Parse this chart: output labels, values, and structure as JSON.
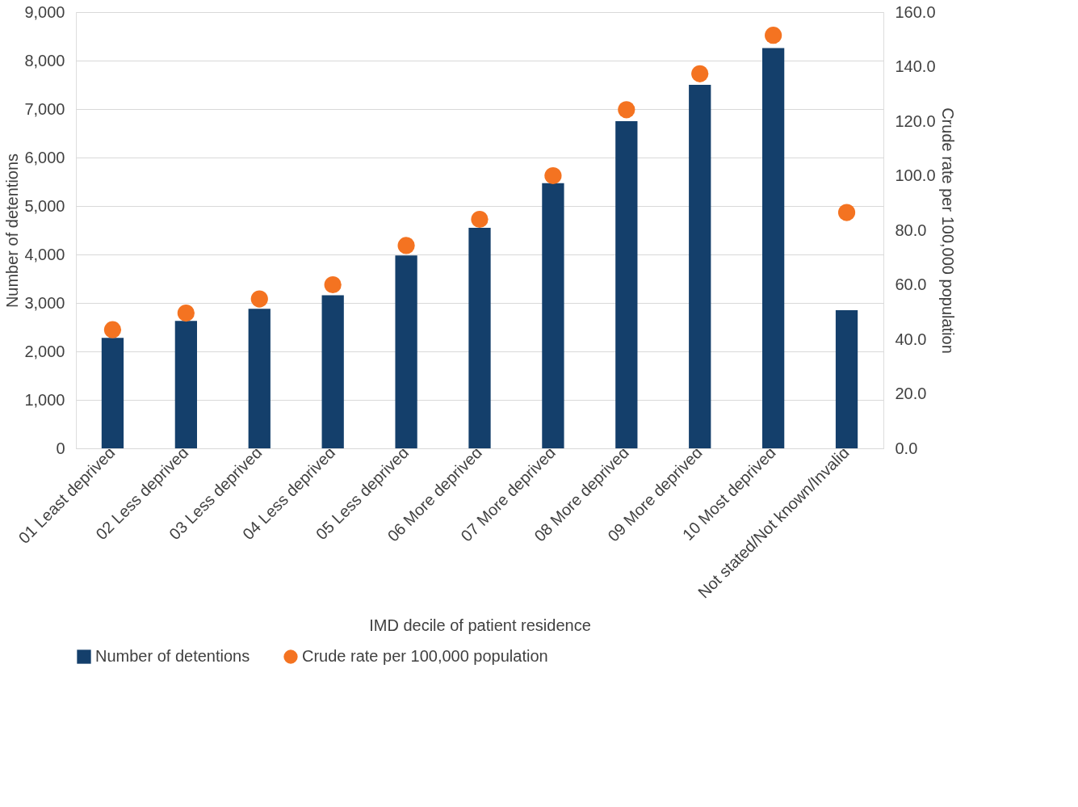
{
  "chart_data": {
    "type": "bar",
    "xlabel": "IMD decile of patient residence",
    "ylabel": "Number  of detentions",
    "y2label": "Crude rate per 100,000 population",
    "categories": [
      "01 Least deprived",
      "02 Less deprived",
      "03 Less deprived",
      "04 Less deprived",
      "05 Less deprived",
      "06 More deprived",
      "07 More deprived",
      "08 More deprived",
      "09 More deprived",
      "10 Most deprived",
      "Not stated/Not known/Invalid"
    ],
    "series": [
      {
        "name": "Number of detentions",
        "color": "#143f6b",
        "values": [
          2280,
          2630,
          2880,
          3160,
          3980,
          4550,
          5470,
          6750,
          7500,
          8260,
          2850
        ]
      },
      {
        "name": "Crude rate per 100,000 population",
        "color": "#f47321",
        "type": "scatter",
        "axis": "y2",
        "values": [
          43.5,
          49.6,
          54.8,
          60.0,
          74.4,
          84.0,
          100.0,
          124.2,
          137.4,
          151.5,
          86.5
        ]
      }
    ],
    "ylim": [
      0,
      9000
    ],
    "yticks": [
      0,
      {
        "value": 1000,
        "label": "1,000"
      },
      {
        "value": 2000,
        "label": "2,000"
      },
      {
        "value": 3000,
        "label": "3,000"
      },
      {
        "value": 4000,
        "label": "4,000"
      },
      {
        "value": 5000,
        "label": "5,000"
      },
      {
        "value": 6000,
        "label": "6,000"
      },
      {
        "value": 7000,
        "label": "7,000"
      },
      {
        "value": 8000,
        "label": "8,000"
      },
      {
        "value": 9000,
        "label": "9,000"
      }
    ],
    "y2lim": [
      0,
      160
    ],
    "y2ticks": [
      {
        "value": 0,
        "label": "0.0"
      },
      {
        "value": 20,
        "label": "20.0"
      },
      {
        "value": 40,
        "label": "40.0"
      },
      {
        "value": 60,
        "label": "60.0"
      },
      {
        "value": 80,
        "label": "80.0"
      },
      {
        "value": 100,
        "label": "100.0"
      },
      {
        "value": 120,
        "label": "120.0"
      },
      {
        "value": 140,
        "label": "140.0"
      },
      {
        "value": 160,
        "label": "160.0"
      }
    ],
    "grid": "y",
    "legend": "bottom",
    "marker": "circle"
  }
}
